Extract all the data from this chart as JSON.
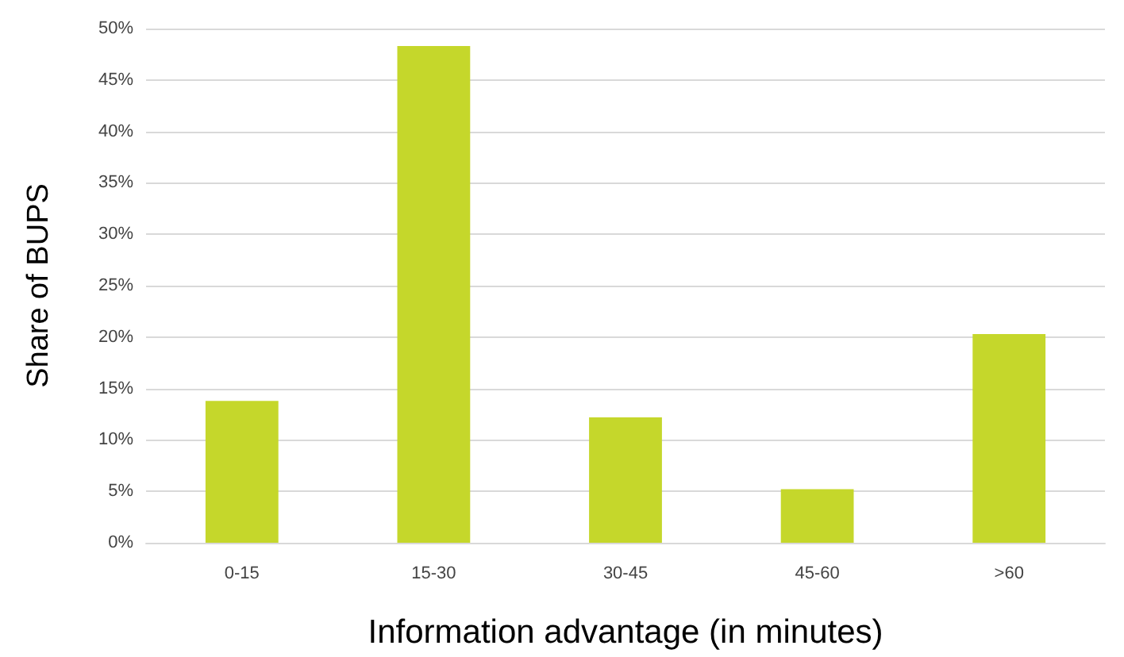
{
  "chart_data": {
    "type": "bar",
    "xlabel": "Information advantage (in minutes)",
    "ylabel": "Share of BUPS",
    "categories": [
      "0-15",
      "15-30",
      "30-45",
      "45-60",
      ">60"
    ],
    "values": [
      13.8,
      48.3,
      12.2,
      5.2,
      20.3
    ],
    "color": "#c5d72b",
    "ylim": [
      0,
      50
    ],
    "yticks": [
      {
        "value": 0,
        "label": "0%"
      },
      {
        "value": 5,
        "label": "5%"
      },
      {
        "value": 10,
        "label": "10%"
      },
      {
        "value": 15,
        "label": "15%"
      },
      {
        "value": 20,
        "label": "20%"
      },
      {
        "value": 25,
        "label": "25%"
      },
      {
        "value": 30,
        "label": "30%"
      },
      {
        "value": 35,
        "label": "35%"
      },
      {
        "value": 40,
        "label": "40%"
      },
      {
        "value": 45,
        "label": "45%"
      },
      {
        "value": 50,
        "label": "50%"
      }
    ],
    "grid": "y"
  }
}
